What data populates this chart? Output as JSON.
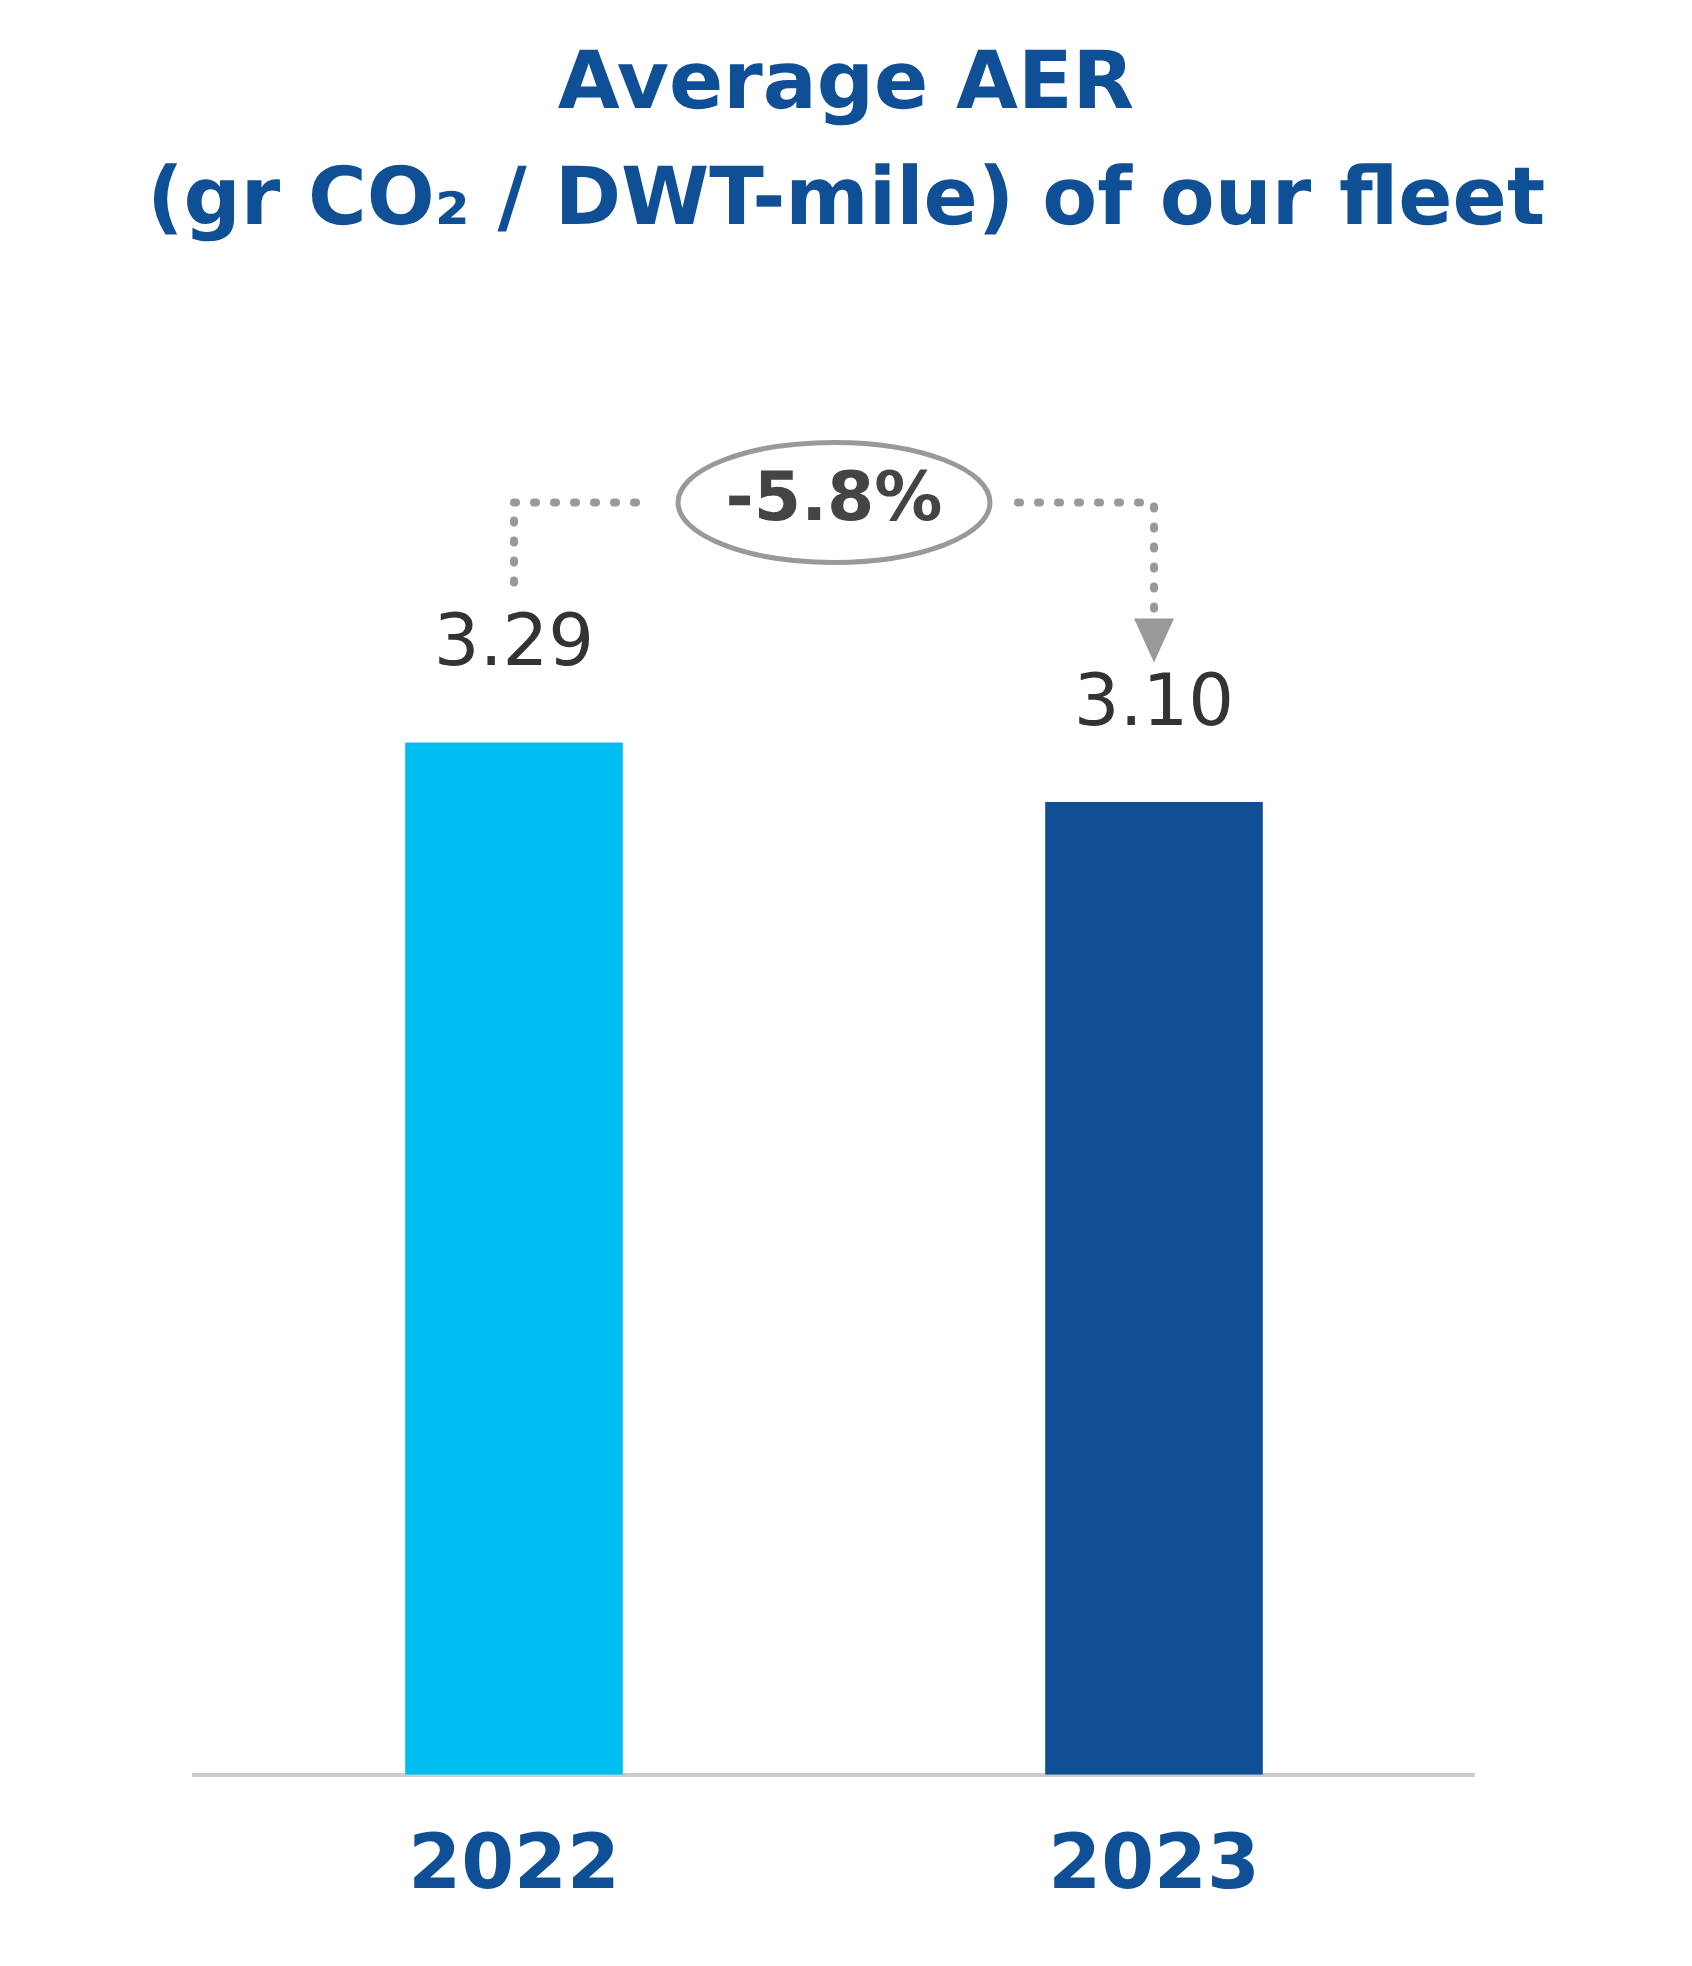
{
  "chart_data": {
    "type": "bar",
    "title": "Average AER\n(gr CO₂ / DWT-mile) of our fleet",
    "categories": [
      "2022",
      "2023"
    ],
    "values": [
      3.29,
      3.1
    ],
    "colors": [
      "#00bef2",
      "#0e4f95"
    ],
    "value_labels": [
      "3.29",
      "3.10"
    ],
    "annotations": [
      "-5.8%"
    ]
  }
}
